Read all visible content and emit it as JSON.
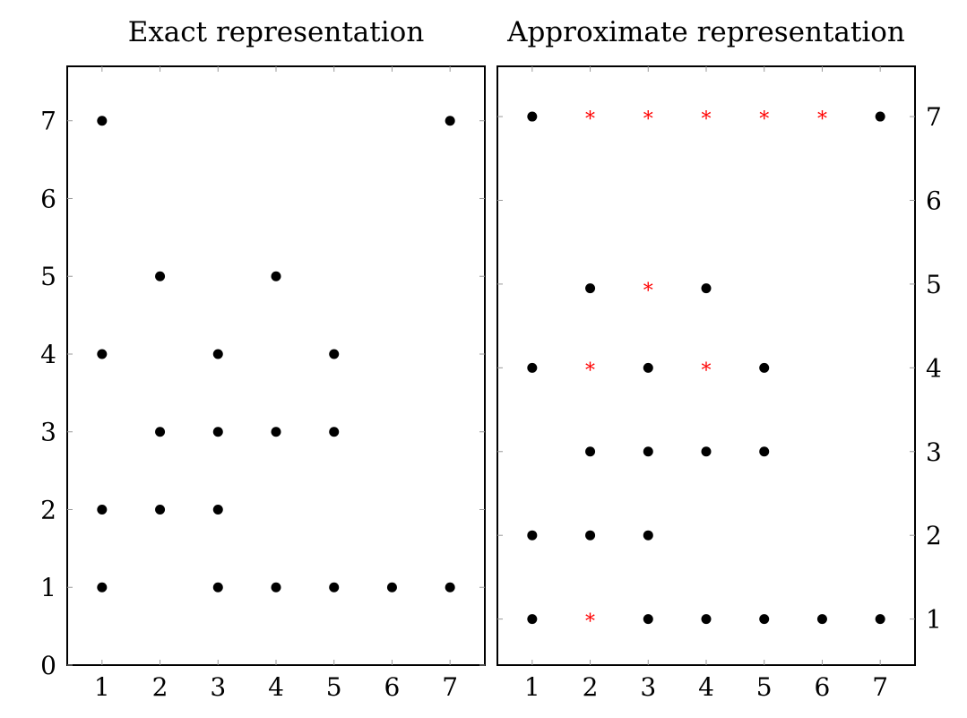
{
  "chart_data": [
    {
      "type": "scatter",
      "title": "Exact representation",
      "xlabel": "",
      "ylabel": "",
      "xlim": [
        0.4,
        7.6
      ],
      "ylim": [
        0,
        7.7
      ],
      "x_ticks": [
        "1",
        "2",
        "3",
        "4",
        "5",
        "6",
        "7"
      ],
      "y_ticks": [
        "0",
        "1",
        "2",
        "3",
        "4",
        "5",
        "6",
        "7"
      ],
      "y_axis_side": "left",
      "grid": false,
      "series": [
        {
          "marker": "circle",
          "color": "#000000",
          "points": [
            [
              1,
              7
            ],
            [
              7,
              7
            ],
            [
              2,
              5
            ],
            [
              4,
              5
            ],
            [
              1,
              4
            ],
            [
              3,
              4
            ],
            [
              5,
              4
            ],
            [
              2,
              3
            ],
            [
              3,
              3
            ],
            [
              4,
              3
            ],
            [
              5,
              3
            ],
            [
              1,
              2
            ],
            [
              2,
              2
            ],
            [
              3,
              2
            ],
            [
              1,
              1
            ],
            [
              3,
              1
            ],
            [
              4,
              1
            ],
            [
              5,
              1
            ],
            [
              6,
              1
            ],
            [
              7,
              1
            ]
          ]
        }
      ]
    },
    {
      "type": "scatter",
      "title": "Approximate representation",
      "xlabel": "",
      "ylabel": "",
      "xlim": [
        0.4,
        7.6
      ],
      "ylim": [
        0.45,
        7.6
      ],
      "x_ticks": [
        "1",
        "2",
        "3",
        "4",
        "5",
        "6",
        "7"
      ],
      "y_ticks": [
        "1",
        "2",
        "3",
        "4",
        "5",
        "6",
        "7"
      ],
      "y_axis_side": "right",
      "grid": false,
      "series": [
        {
          "marker": "circle",
          "color": "#000000",
          "points": [
            [
              1,
              7
            ],
            [
              7,
              7
            ],
            [
              2,
              4.95
            ],
            [
              4,
              4.95
            ],
            [
              1,
              4
            ],
            [
              3,
              4
            ],
            [
              5,
              4
            ],
            [
              2,
              3
            ],
            [
              3,
              3
            ],
            [
              4,
              3
            ],
            [
              5,
              3
            ],
            [
              1,
              2
            ],
            [
              2,
              2
            ],
            [
              3,
              2
            ],
            [
              1,
              1
            ],
            [
              3,
              1
            ],
            [
              4,
              1
            ],
            [
              5,
              1
            ],
            [
              6,
              1
            ],
            [
              7,
              1
            ]
          ]
        },
        {
          "marker": "star",
          "color": "#ff0000",
          "points": [
            [
              2,
              7
            ],
            [
              3,
              7
            ],
            [
              4,
              7
            ],
            [
              5,
              7
            ],
            [
              6,
              7
            ],
            [
              3,
              4.95
            ],
            [
              2,
              4
            ],
            [
              4,
              4
            ],
            [
              2,
              1
            ]
          ]
        }
      ]
    }
  ]
}
